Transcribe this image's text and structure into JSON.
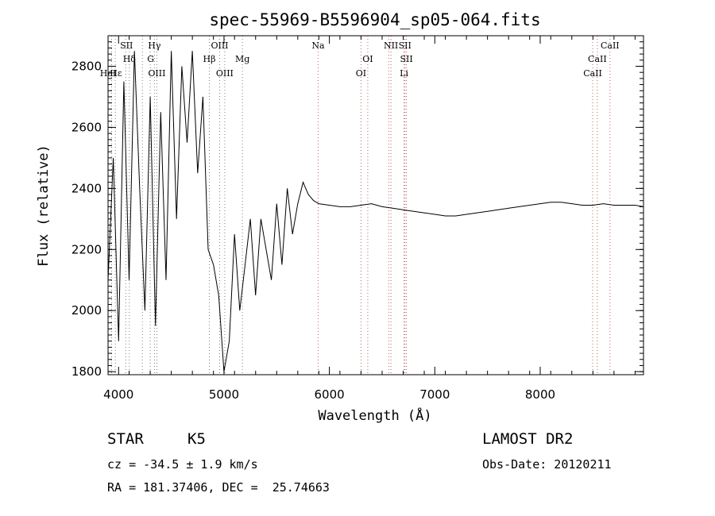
{
  "chart_data": {
    "type": "line",
    "title": "spec-55969-B5596904_sp05-064.fits",
    "xlabel": "Wavelength (Å)",
    "ylabel": "Flux (relative)",
    "xlim": [
      3900,
      8980
    ],
    "ylim": [
      1790,
      2900
    ],
    "x_ticks": [
      4000,
      5000,
      6000,
      7000,
      8000
    ],
    "x_tick_labels": [
      "4000",
      "5000",
      "6000",
      "7000",
      "8000"
    ],
    "y_ticks": [
      1800,
      2000,
      2200,
      2400,
      2600,
      2800
    ],
    "y_tick_labels": [
      "1800",
      "2000",
      "2200",
      "2400",
      "2600",
      "2800"
    ],
    "grid": false,
    "series": [
      {
        "values_x": [
          3900,
          3950,
          4000,
          4050,
          4100,
          4150,
          4200,
          4250,
          4300,
          4350,
          4400,
          4450,
          4500,
          4550,
          4600,
          4650,
          4700,
          4750,
          4800,
          4850,
          4900,
          4950,
          5000,
          5050,
          5100,
          5150,
          5200,
          5250,
          5300,
          5350,
          5400,
          5450,
          5500,
          5550,
          5600,
          5650,
          5700,
          5750,
          5800,
          5850,
          5900,
          6000,
          6100,
          6200,
          6300,
          6400,
          6500,
          6600,
          6700,
          6800,
          6900,
          7000,
          7100,
          7200,
          7300,
          7400,
          7500,
          7600,
          7700,
          7800,
          7900,
          8000,
          8100,
          8200,
          8300,
          8400,
          8500,
          8600,
          8700,
          8800,
          8900,
          8980
        ],
        "values_y": [
          2100,
          2500,
          1900,
          2750,
          2100,
          2850,
          2400,
          2000,
          2700,
          1950,
          2650,
          2100,
          2850,
          2300,
          2800,
          2550,
          2850,
          2450,
          2700,
          2200,
          2150,
          2050,
          1800,
          1900,
          2250,
          2000,
          2150,
          2300,
          2050,
          2300,
          2200,
          2100,
          2350,
          2150,
          2400,
          2250,
          2350,
          2420,
          2380,
          2360,
          2350,
          2345,
          2340,
          2340,
          2345,
          2350,
          2340,
          2335,
          2330,
          2325,
          2320,
          2315,
          2310,
          2310,
          2315,
          2320,
          2325,
          2330,
          2335,
          2340,
          2345,
          2350,
          2355,
          2355,
          2350,
          2345,
          2345,
          2350,
          2345,
          2345,
          2345,
          2340
        ]
      }
    ],
    "reference_lines": [
      {
        "x": 3934,
        "color": "#808080"
      },
      {
        "x": 3969,
        "color": "#808080"
      },
      {
        "x": 4068,
        "color": "#808080"
      },
      {
        "x": 4102,
        "color": "#808080"
      },
      {
        "x": 4226,
        "color": "#808080"
      },
      {
        "x": 4300,
        "color": "#808080"
      },
      {
        "x": 4340,
        "color": "#808080"
      },
      {
        "x": 4363,
        "color": "#808080"
      },
      {
        "x": 4861,
        "color": "#808080"
      },
      {
        "x": 4959,
        "color": "#808080"
      },
      {
        "x": 5007,
        "color": "#808080"
      },
      {
        "x": 5175,
        "color": "#808080"
      },
      {
        "x": 5893,
        "color": "#c06060"
      },
      {
        "x": 6300,
        "color": "#c06060"
      },
      {
        "x": 6364,
        "color": "#c06060"
      },
      {
        "x": 6563,
        "color": "#c06060"
      },
      {
        "x": 6584,
        "color": "#c06060"
      },
      {
        "x": 6708,
        "color": "#c06060"
      },
      {
        "x": 6717,
        "color": "#c06060"
      },
      {
        "x": 6731,
        "color": "#c06060"
      },
      {
        "x": 8498,
        "color": "#c06060"
      },
      {
        "x": 8542,
        "color": "#c06060"
      },
      {
        "x": 8662,
        "color": "#c06060"
      }
    ],
    "line_labels": [
      {
        "text": "SII",
        "x": 4075,
        "row": 0
      },
      {
        "text": "Hδ",
        "x": 4102,
        "row": 1
      },
      {
        "text": "Hε",
        "x": 3975,
        "row": 2
      },
      {
        "text": "HeI",
        "x": 3900,
        "row": 3
      },
      {
        "text": "Hγ",
        "x": 4340,
        "row": 0
      },
      {
        "text": "G",
        "x": 4304,
        "row": 1
      },
      {
        "text": "OIII",
        "x": 4363,
        "row": 2
      },
      {
        "text": "OIII",
        "x": 4959,
        "row": 0
      },
      {
        "text": "Hβ",
        "x": 4861,
        "row": 1
      },
      {
        "text": "Mg",
        "x": 5175,
        "row": 1
      },
      {
        "text": "OIII",
        "x": 5007,
        "row": 2
      },
      {
        "text": "Na",
        "x": 5893,
        "row": 0
      },
      {
        "text": "OI",
        "x": 6364,
        "row": 1
      },
      {
        "text": "OI",
        "x": 6300,
        "row": 2
      },
      {
        "text": "NII",
        "x": 6584,
        "row": 0
      },
      {
        "text": "SII",
        "x": 6717,
        "row": 0
      },
      {
        "text": "SII",
        "x": 6731,
        "row": 1
      },
      {
        "text": "Li",
        "x": 6708,
        "row": 2
      },
      {
        "text": "CaII",
        "x": 8662,
        "row": 0
      },
      {
        "text": "CaII",
        "x": 8542,
        "row": 1
      },
      {
        "text": "CaII",
        "x": 8498,
        "row": 2
      }
    ],
    "line_color": "#000000"
  },
  "info": {
    "class_label": "STAR",
    "subclass": "K5",
    "survey": "LAMOST DR2",
    "redshift": "cz = -34.5 ± 1.9 km/s",
    "obs_date": "Obs-Date: 20120211",
    "coords": "RA = 181.37406, DEC =  25.74663"
  }
}
